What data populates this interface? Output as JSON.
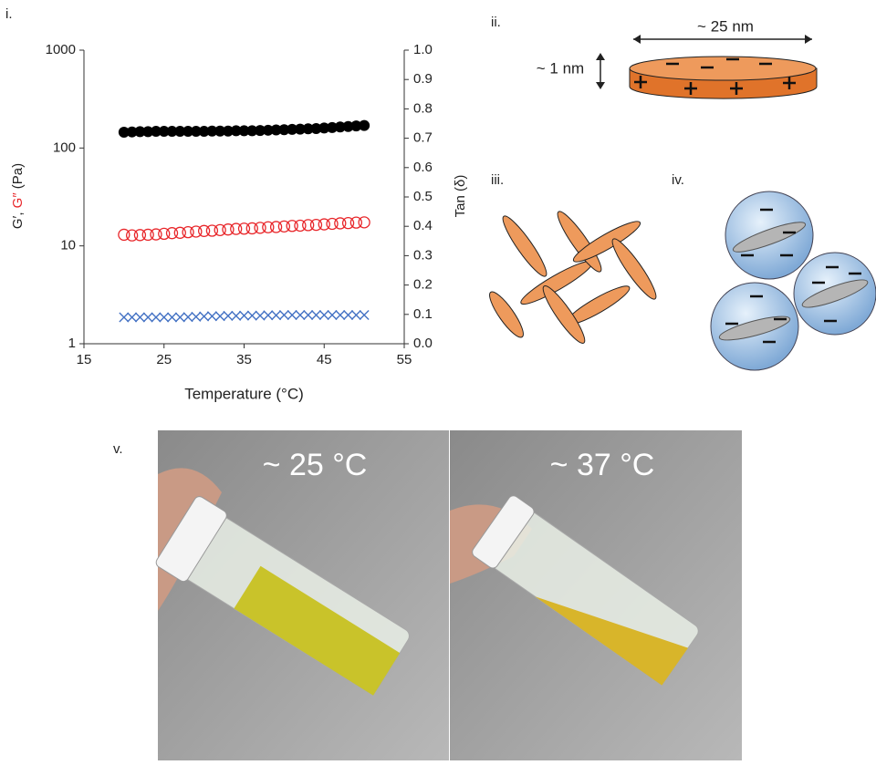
{
  "panel_labels": [
    "i.",
    "ii.",
    "iii.",
    "iv.",
    "v."
  ],
  "chart_data": {
    "type": "scatter",
    "x_label": "Temperature (°C)",
    "y_label": [
      {
        "text": "G′, ",
        "color": "#222222"
      },
      {
        "text": "G″",
        "color": "#e8262a"
      },
      {
        "text": " (Pa)",
        "color": "#222222"
      }
    ],
    "y2_label": "Tan (δ)",
    "y2_label_color": "#4472c4",
    "x": [
      20,
      21,
      22,
      23,
      24,
      25,
      26,
      27,
      28,
      29,
      30,
      31,
      32,
      33,
      34,
      35,
      36,
      37,
      38,
      39,
      40,
      41,
      42,
      43,
      44,
      45,
      46,
      47,
      48,
      49,
      50
    ],
    "xlim": [
      15,
      55
    ],
    "xticks": [
      15,
      25,
      35,
      45,
      55
    ],
    "ylim": [
      1,
      1000
    ],
    "yticks": [
      1,
      10,
      100,
      1000
    ],
    "y_scale": "log",
    "y2lim": [
      0,
      1
    ],
    "y2ticks": [
      {
        "value": 0,
        "label": "0.0"
      },
      0.1,
      0.2,
      0.3,
      0.4,
      0.5,
      0.6,
      0.7,
      0.8,
      0.9,
      {
        "value": 1,
        "label": "1.0"
      }
    ],
    "series": [
      {
        "name": "G′",
        "color": "#000000",
        "marker": "filled-circle",
        "values": [
          145,
          146,
          147,
          147,
          148,
          148,
          148,
          148,
          148,
          148,
          148,
          149,
          149,
          149,
          150,
          150,
          150,
          151,
          152,
          153,
          154,
          155,
          156,
          157,
          158,
          160,
          162,
          164,
          166,
          168,
          170
        ]
      },
      {
        "name": "G″",
        "color": "#e8262a",
        "marker": "open-circle",
        "values": [
          13,
          12.8,
          12.9,
          13,
          13.1,
          13.3,
          13.5,
          13.6,
          13.8,
          14,
          14.2,
          14.3,
          14.5,
          14.7,
          14.9,
          15,
          15.1,
          15.3,
          15.5,
          15.6,
          15.8,
          16,
          16.1,
          16.3,
          16.4,
          16.6,
          16.8,
          17,
          17.1,
          17.3,
          17.4
        ]
      },
      {
        "name": "Tan (δ)",
        "color": "#4472c4",
        "marker": "x",
        "axis": "y2",
        "values": [
          0.09,
          0.09,
          0.09,
          0.09,
          0.09,
          0.09,
          0.09,
          0.09,
          0.091,
          0.092,
          0.093,
          0.094,
          0.094,
          0.095,
          0.095,
          0.096,
          0.096,
          0.096,
          0.097,
          0.097,
          0.098,
          0.098,
          0.098,
          0.098,
          0.098,
          0.098,
          0.098,
          0.098,
          0.098,
          0.098,
          0.098
        ]
      }
    ]
  },
  "diagram": {
    "width_label": "~ 25 nm",
    "thickness_label": "~ 1 nm"
  },
  "photos": [
    {
      "label": "~ 25 °C"
    },
    {
      "label": "~ 37 °C"
    }
  ]
}
